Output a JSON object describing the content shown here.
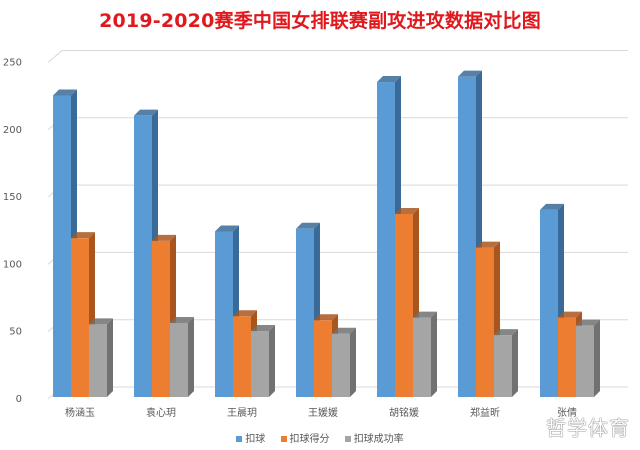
{
  "chart_data": {
    "type": "bar",
    "title": "2019-2020赛季中国女排联赛副攻进攻数据对比图",
    "xlabel": "",
    "ylabel": "",
    "ylim": [
      0,
      250
    ],
    "yticks": [
      0,
      50,
      100,
      150,
      200,
      250
    ],
    "grid": true,
    "legend_position": "bottom",
    "style": "3d-column",
    "categories": [
      "杨涵玉",
      "袁心玥",
      "王晨玥",
      "王媛媛",
      "胡铭媛",
      "郑益昕",
      "张倩"
    ],
    "series": [
      {
        "name": "扣球",
        "color": "#5b9bd5",
        "side": "#3a6a98",
        "values": [
          224,
          209,
          123,
          125,
          234,
          238,
          139
        ]
      },
      {
        "name": "扣球得分",
        "color": "#ed7d31",
        "side": "#a9561e",
        "values": [
          118,
          116,
          60,
          57,
          136,
          111,
          59
        ]
      },
      {
        "name": "扣球成功率",
        "color": "#a5a5a5",
        "side": "#717171",
        "values": [
          54,
          55,
          49,
          47,
          59,
          46,
          53
        ]
      }
    ]
  },
  "watermark": "哲学体育"
}
